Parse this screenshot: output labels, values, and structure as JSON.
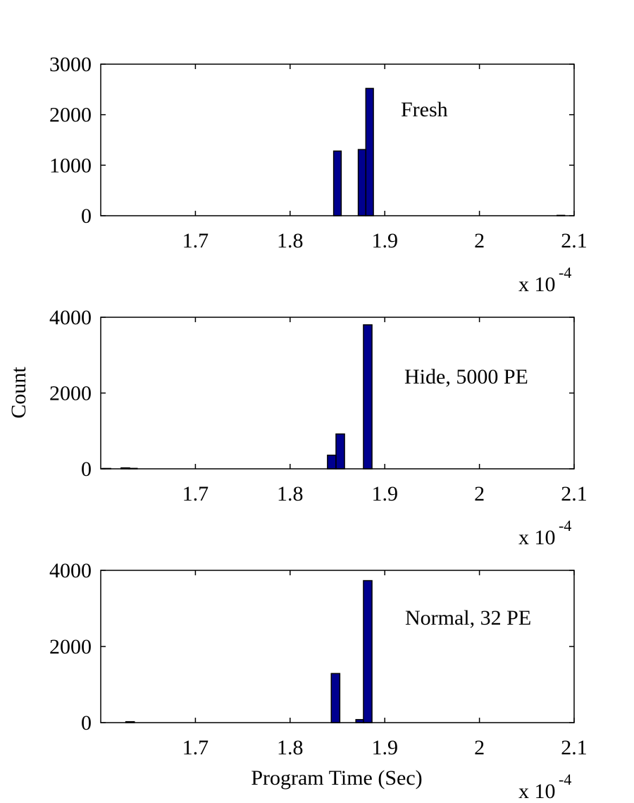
{
  "figure": {
    "ylabel": "Count",
    "xlabel": "Program Time (Sec)"
  },
  "chart_data": [
    {
      "type": "bar",
      "annotation": "Fresh",
      "xlim": [
        1.6,
        2.1
      ],
      "ylim": [
        0,
        3000
      ],
      "xticks": [
        "1.7",
        "1.8",
        "1.9",
        "2",
        "2.1"
      ],
      "xtick_values": [
        1.7,
        1.8,
        1.9,
        2.0,
        2.1
      ],
      "yticks": [
        "0",
        "1000",
        "2000",
        "3000"
      ],
      "ytick_values": [
        0,
        1000,
        2000,
        3000
      ],
      "x_multiplier": {
        "base": "x 10",
        "exponent": "-4"
      },
      "bin_width": 0.008,
      "color": "#00008f",
      "bins": [
        {
          "x": 1.85,
          "y": 1280
        },
        {
          "x": 1.876,
          "y": 1310
        },
        {
          "x": 1.884,
          "y": 2520
        },
        {
          "x": 2.086,
          "y": 8
        }
      ]
    },
    {
      "type": "bar",
      "annotation": "Hide, 5000 PE",
      "xlim": [
        1.6,
        2.1
      ],
      "ylim": [
        0,
        4000
      ],
      "xticks": [
        "1.7",
        "1.8",
        "1.9",
        "2",
        "2.1"
      ],
      "xtick_values": [
        1.7,
        1.8,
        1.9,
        2.0,
        2.1
      ],
      "yticks": [
        "0",
        "2000",
        "4000"
      ],
      "ytick_values": [
        0,
        2000,
        4000
      ],
      "x_multiplier": {
        "base": "x 10",
        "exponent": "-4"
      },
      "bin_width": 0.009,
      "color": "#00008f",
      "bins": [
        {
          "x": 1.606,
          "y": 10
        },
        {
          "x": 1.626,
          "y": 25
        },
        {
          "x": 1.634,
          "y": 12
        },
        {
          "x": 1.844,
          "y": 360
        },
        {
          "x": 1.853,
          "y": 920
        },
        {
          "x": 1.882,
          "y": 3800
        }
      ]
    },
    {
      "type": "bar",
      "annotation": "Normal, 32 PE",
      "xlim": [
        1.6,
        2.1
      ],
      "ylim": [
        0,
        4000
      ],
      "xticks": [
        "1.7",
        "1.8",
        "1.9",
        "2",
        "2.1"
      ],
      "xtick_values": [
        1.7,
        1.8,
        1.9,
        2.0,
        2.1
      ],
      "yticks": [
        "0",
        "2000",
        "4000"
      ],
      "ytick_values": [
        0,
        2000,
        4000
      ],
      "x_multiplier": {
        "base": "x 10",
        "exponent": "-4"
      },
      "bin_width": 0.009,
      "color": "#00008f",
      "bins": [
        {
          "x": 1.631,
          "y": 25
        },
        {
          "x": 1.848,
          "y": 1290
        },
        {
          "x": 1.874,
          "y": 80
        },
        {
          "x": 1.882,
          "y": 3730
        }
      ]
    }
  ]
}
